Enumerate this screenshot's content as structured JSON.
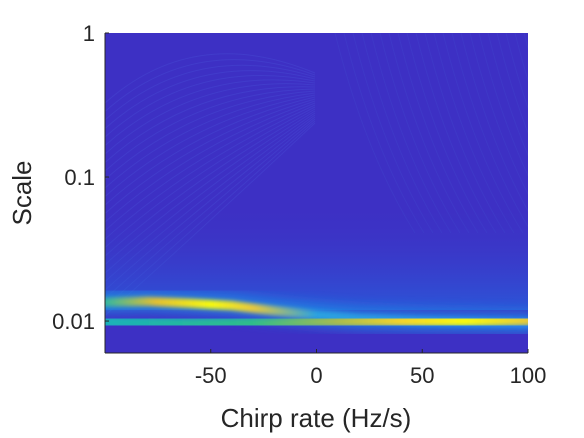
{
  "chart_data": {
    "type": "heatmap",
    "title": "",
    "xlabel": "Chirp rate (Hz/s)",
    "ylabel": "Scale",
    "xlim": [
      -100,
      100
    ],
    "ylim": [
      0.006,
      1
    ],
    "yscale": "log",
    "x_ticks": [
      -50,
      0,
      50,
      100
    ],
    "x_tick_labels": [
      "-50",
      "0",
      "50",
      "100"
    ],
    "y_ticks": [
      0.01,
      0.1,
      1
    ],
    "y_tick_labels": [
      "0.01",
      "0.1",
      "1"
    ],
    "colormap": "parula",
    "background_color": "#3d30c4",
    "ridges": [
      {
        "description_points": [
          [
            -100,
            0.0135
          ],
          [
            -80,
            0.0137
          ],
          [
            -60,
            0.0133
          ],
          [
            -40,
            0.0128
          ],
          [
            -20,
            0.0118
          ],
          [
            0,
            0.011
          ],
          [
            20,
            0.0104
          ],
          [
            50,
            0.01
          ],
          [
            100,
            0.0097
          ]
        ],
        "peak_intensity": [
          0.55,
          0.8,
          1.0,
          0.75,
          0.35,
          0.3,
          0.3,
          0.3,
          0.3
        ]
      },
      {
        "description_points": [
          [
            -100,
            0.0098
          ],
          [
            -60,
            0.0096
          ],
          [
            -20,
            0.0097
          ],
          [
            0,
            0.0099
          ],
          [
            30,
            0.01
          ],
          [
            50,
            0.01
          ],
          [
            70,
            0.01
          ],
          [
            100,
            0.0101
          ]
        ],
        "peak_intensity": [
          0.6,
          0.55,
          0.6,
          0.7,
          0.85,
          0.95,
          1.0,
          0.9
        ]
      }
    ]
  }
}
